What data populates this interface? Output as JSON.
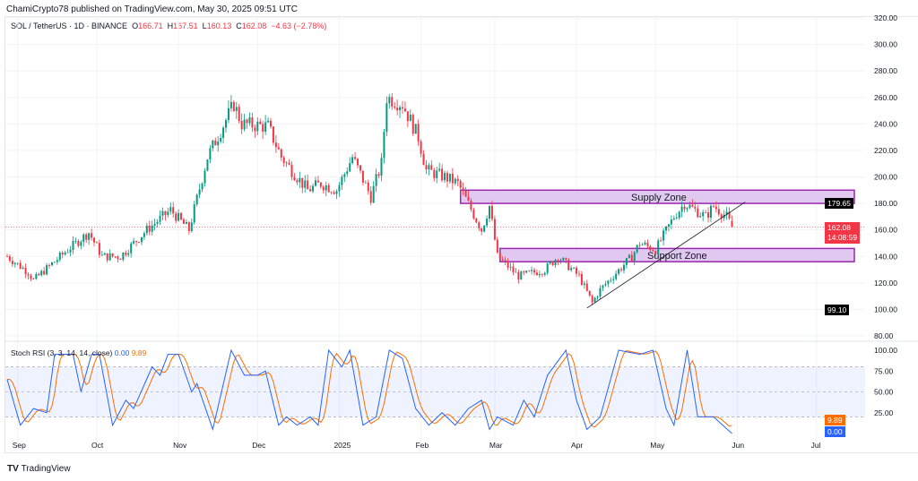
{
  "header": {
    "published": "ChamiCrypto78 published on TradingView.com, May 30, 2025 09:51 UTC",
    "symbol": "SOL / TetherUS · 1D · BINANCE",
    "o_label": "O",
    "o": "166.71",
    "h_label": "H",
    "h": "167.51",
    "l_label": "L",
    "l": "160.13",
    "c_label": "C",
    "c": "162.08",
    "change": "−4.63 (−2.78%)"
  },
  "indicator": {
    "label": "Stoch RSI (3, 3, 14, 14, close)",
    "k": "0.00",
    "d": "9.89"
  },
  "tags": {
    "last_price": "162.08",
    "countdown": "14:08:59",
    "level_high": "179.65",
    "level_low": "99.10",
    "rsi_d": "9.89",
    "rsi_k": "0.00"
  },
  "annotations": {
    "supply": "Supply Zone",
    "support": "Support Zone"
  },
  "footer": {
    "brand_mark": "TV",
    "brand": "TradingView"
  },
  "colors": {
    "up": "#089981",
    "down": "#f23645",
    "k": "#2962ff",
    "d": "#ff6d00",
    "zone_fill": "#e1c8f0",
    "zone_border": "#9c27b0"
  },
  "chart_data": {
    "type": "candlestick",
    "title": "SOL / TetherUS · 1D · BINANCE",
    "ylim": [
      80,
      320
    ],
    "y_ticks": [
      "80.00",
      "100.00",
      "120.00",
      "140.00",
      "160.00",
      "180.00",
      "200.00",
      "220.00",
      "240.00",
      "260.00",
      "280.00",
      "300.00",
      "320.00"
    ],
    "x_ticks": [
      {
        "label": "Sep",
        "day": 4
      },
      {
        "label": "Oct",
        "day": 34
      },
      {
        "label": "Nov",
        "day": 65
      },
      {
        "label": "Dec",
        "day": 95
      },
      {
        "label": "2025",
        "day": 126
      },
      {
        "label": "Feb",
        "day": 157
      },
      {
        "label": "Mar",
        "day": 185
      },
      {
        "label": "Apr",
        "day": 216
      },
      {
        "label": "May",
        "day": 246
      },
      {
        "label": "Jun",
        "day": 277
      },
      {
        "label": "Jul",
        "day": 307
      }
    ],
    "day_zero": "2024-08-28",
    "close_keyframes": [
      [
        0,
        140
      ],
      [
        8,
        128
      ],
      [
        10,
        122
      ],
      [
        23,
        145
      ],
      [
        31,
        158
      ],
      [
        36,
        140
      ],
      [
        43,
        140
      ],
      [
        53,
        160
      ],
      [
        62,
        175
      ],
      [
        69,
        160
      ],
      [
        76,
        215
      ],
      [
        86,
        255
      ],
      [
        89,
        240
      ],
      [
        99,
        238
      ],
      [
        104,
        215
      ],
      [
        114,
        190
      ],
      [
        119,
        195
      ],
      [
        125,
        190
      ],
      [
        131,
        215
      ],
      [
        138,
        185
      ],
      [
        142,
        210
      ],
      [
        144,
        260
      ],
      [
        150,
        255
      ],
      [
        156,
        230
      ],
      [
        159,
        205
      ],
      [
        166,
        200
      ],
      [
        171,
        195
      ],
      [
        180,
        160
      ],
      [
        183,
        178
      ],
      [
        186,
        140
      ],
      [
        194,
        125
      ],
      [
        204,
        130
      ],
      [
        209,
        140
      ],
      [
        217,
        125
      ],
      [
        222,
        105
      ],
      [
        225,
        115
      ],
      [
        237,
        140
      ],
      [
        240,
        150
      ],
      [
        246,
        145
      ],
      [
        253,
        170
      ],
      [
        257,
        180
      ],
      [
        265,
        170
      ],
      [
        268,
        178
      ],
      [
        273,
        170
      ],
      [
        275,
        162
      ]
    ],
    "zones": [
      {
        "name": "Supply Zone",
        "from_day": 172,
        "top": 190,
        "bottom": 180
      },
      {
        "name": "Support Zone",
        "from_day": 187,
        "top": 146,
        "bottom": 136
      }
    ],
    "trendline": [
      [
        220,
        101
      ],
      [
        280,
        181
      ]
    ],
    "last_price": 162.08,
    "stoch_rsi": {
      "ylim": [
        0,
        100
      ],
      "y_ticks": [
        "25.00",
        "50.00",
        "75.00",
        "100.00"
      ],
      "band": [
        20,
        80
      ],
      "k_keyframes": [
        [
          0,
          65
        ],
        [
          5,
          10
        ],
        [
          10,
          30
        ],
        [
          15,
          25
        ],
        [
          18,
          95
        ],
        [
          25,
          95
        ],
        [
          28,
          50
        ],
        [
          32,
          95
        ],
        [
          35,
          95
        ],
        [
          40,
          10
        ],
        [
          45,
          40
        ],
        [
          48,
          30
        ],
        [
          55,
          80
        ],
        [
          58,
          70
        ],
        [
          61,
          95
        ],
        [
          65,
          95
        ],
        [
          70,
          50
        ],
        [
          72,
          60
        ],
        [
          78,
          5
        ],
        [
          85,
          100
        ],
        [
          90,
          70
        ],
        [
          95,
          70
        ],
        [
          98,
          75
        ],
        [
          103,
          10
        ],
        [
          106,
          20
        ],
        [
          110,
          10
        ],
        [
          115,
          20
        ],
        [
          118,
          10
        ],
        [
          122,
          100
        ],
        [
          127,
          80
        ],
        [
          130,
          100
        ],
        [
          135,
          10
        ],
        [
          140,
          20
        ],
        [
          145,
          100
        ],
        [
          150,
          90
        ],
        [
          155,
          30
        ],
        [
          160,
          10
        ],
        [
          165,
          25
        ],
        [
          170,
          10
        ],
        [
          175,
          30
        ],
        [
          180,
          40
        ],
        [
          183,
          5
        ],
        [
          186,
          20
        ],
        [
          192,
          10
        ],
        [
          196,
          40
        ],
        [
          200,
          20
        ],
        [
          205,
          70
        ],
        [
          212,
          100
        ],
        [
          216,
          40
        ],
        [
          220,
          5
        ],
        [
          225,
          20
        ],
        [
          232,
          100
        ],
        [
          240,
          95
        ],
        [
          245,
          100
        ],
        [
          250,
          30
        ],
        [
          253,
          10
        ],
        [
          258,
          100
        ],
        [
          262,
          20
        ],
        [
          268,
          20
        ],
        [
          275,
          0
        ]
      ]
    }
  }
}
